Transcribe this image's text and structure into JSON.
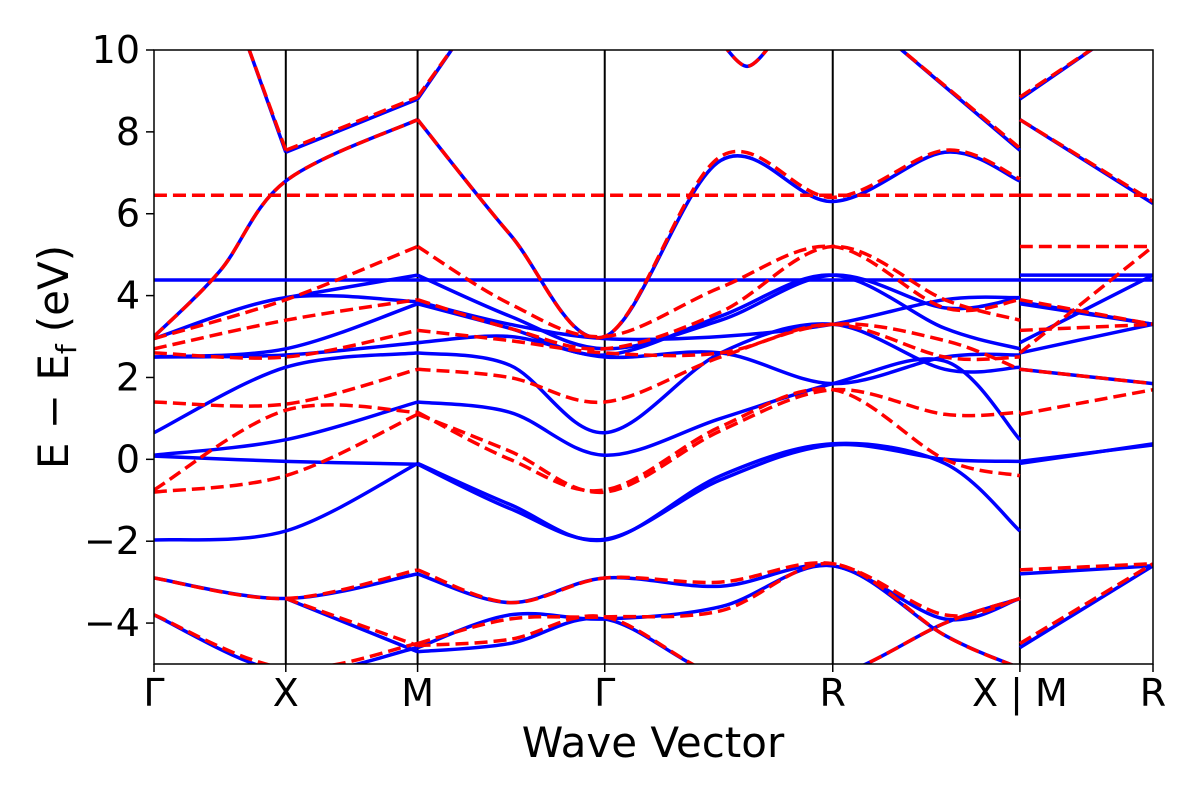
{
  "chart_data": {
    "type": "line",
    "xlabel": "Wave Vector",
    "ylabel": "E − E",
    "ylabel_sub": "f",
    "ylabel_unit": "(eV)",
    "ylim": [
      -5,
      10
    ],
    "y_ticks": [
      -4,
      -2,
      0,
      2,
      4,
      6,
      8,
      10
    ],
    "y_tick_labels": [
      "−4",
      "−2",
      "0",
      "2",
      "4",
      "6",
      "8",
      "10"
    ],
    "x_ticks": [
      0,
      1,
      2,
      3.42,
      5.15,
      6.57,
      7.58
    ],
    "x_tick_labels": [
      "Γ",
      "X",
      "M",
      "Γ",
      "R",
      "X | M",
      "R"
    ],
    "xlim": [
      0,
      7.58
    ],
    "grid": false,
    "series": [
      {
        "style": "solid",
        "color": "#0000ff",
        "bands": [
          {
            "x": [
              0,
              7.58
            ],
            "y": [
              4.38,
              4.38
            ]
          },
          {
            "x": [
              0,
              1,
              2
            ],
            "y": [
              -1.97,
              -1.75,
              -0.1
            ]
          },
          {
            "x": [
              2,
              2.7,
              3.42,
              4.3,
              5.15,
              6.0,
              6.57
            ],
            "y": [
              -0.1,
              -1.1,
              -1.97,
              -0.4,
              0.38,
              -0.1,
              -1.75
            ]
          },
          {
            "x": [
              6.57,
              7.58
            ],
            "y": [
              -0.1,
              0.38
            ]
          },
          {
            "x": [
              0,
              1,
              2
            ],
            "y": [
              0.08,
              -0.05,
              -0.12
            ]
          },
          {
            "x": [
              2,
              2.7,
              3.42,
              4.3,
              5.15,
              6.0,
              6.57
            ],
            "y": [
              -0.12,
              -1.2,
              -1.95,
              -0.5,
              0.35,
              0.0,
              -0.05
            ]
          },
          {
            "x": [
              6.57,
              7.58
            ],
            "y": [
              -0.05,
              0.35
            ]
          },
          {
            "x": [
              0,
              1,
              2
            ],
            "y": [
              0.1,
              0.48,
              1.4
            ]
          },
          {
            "x": [
              2,
              2.7,
              3.42,
              4.3,
              5.15,
              6.0,
              6.57
            ],
            "y": [
              1.4,
              1.15,
              0.1,
              1.0,
              1.85,
              2.4,
              0.48
            ]
          },
          {
            "x": [
              6.57,
              7.58
            ],
            "y": [
              2.2,
              1.85
            ]
          },
          {
            "x": [
              0,
              1,
              2
            ],
            "y": [
              0.65,
              2.25,
              2.6
            ]
          },
          {
            "x": [
              2,
              2.7,
              3.42,
              4.3,
              5.15,
              6.0,
              6.57
            ],
            "y": [
              2.6,
              2.3,
              0.65,
              2.6,
              3.3,
              2.2,
              2.25
            ]
          },
          {
            "x": [
              6.57,
              7.58
            ],
            "y": [
              2.6,
              3.3
            ]
          },
          {
            "x": [
              0,
              1,
              2
            ],
            "y": [
              2.5,
              2.55,
              2.85
            ]
          },
          {
            "x": [
              2,
              2.7,
              3.42,
              4.3,
              5.15,
              6.0,
              6.57
            ],
            "y": [
              2.85,
              3.0,
              2.5,
              2.6,
              1.85,
              2.5,
              2.55
            ]
          },
          {
            "x": [
              6.57,
              7.58
            ],
            "y": [
              2.85,
              4.5
            ]
          },
          {
            "x": [
              0,
              1,
              2
            ],
            "y": [
              2.5,
              2.7,
              3.8
            ]
          },
          {
            "x": [
              2,
              2.7,
              3.42,
              4.3,
              5.15,
              6.0,
              6.57
            ],
            "y": [
              3.8,
              3.2,
              2.55,
              3.5,
              4.5,
              3.2,
              2.7
            ]
          },
          {
            "x": [
              6.57,
              7.58
            ],
            "y": [
              3.8,
              3.3
            ]
          },
          {
            "x": [
              0,
              1,
              2
            ],
            "y": [
              2.95,
              3.95,
              3.85
            ]
          },
          {
            "x": [
              2,
              2.7,
              3.42,
              4.3,
              5.15,
              6.0,
              6.57
            ],
            "y": [
              3.85,
              3.3,
              2.95,
              3.0,
              3.3,
              3.9,
              3.95
            ]
          },
          {
            "x": [
              6.57,
              7.58
            ],
            "y": [
              3.85,
              3.3
            ]
          },
          {
            "x": [
              1,
              2
            ],
            "y": [
              3.95,
              4.5
            ]
          },
          {
            "x": [
              2,
              2.7,
              3.42,
              4.3,
              5.15,
              6.0,
              6.57
            ],
            "y": [
              4.5,
              3.5,
              2.7,
              3.4,
              4.5,
              3.7,
              3.95
            ]
          },
          {
            "x": [
              6.57,
              7.58
            ],
            "y": [
              4.5,
              4.5
            ]
          },
          {
            "x": [
              0,
              0.5,
              1,
              2
            ],
            "y": [
              3.0,
              4.6,
              6.8,
              8.3
            ]
          },
          {
            "x": [
              2,
              2.7,
              3.42,
              4.3,
              5.15,
              6.0,
              6.57
            ],
            "y": [
              8.3,
              5.5,
              3.0,
              7.3,
              6.3,
              7.5,
              6.8
            ]
          },
          {
            "x": [
              6.57,
              7.58
            ],
            "y": [
              8.3,
              6.25
            ]
          },
          {
            "x": [
              1,
              2
            ],
            "y": [
              7.5,
              8.8
            ]
          },
          {
            "x": [
              2,
              2.3
            ],
            "y": [
              8.8,
              10.2
            ]
          },
          {
            "x": [
              1,
              0.7
            ],
            "y": [
              7.5,
              10.2
            ]
          },
          {
            "x": [
              4.3,
              4.5,
              4.7
            ],
            "y": [
              10.2,
              9.6,
              10.2
            ]
          },
          {
            "x": [
              5.6,
              6.57
            ],
            "y": [
              10.2,
              7.55
            ]
          },
          {
            "x": [
              6.57,
              7.2
            ],
            "y": [
              8.8,
              10.2
            ]
          },
          {
            "x": [
              0,
              1,
              2
            ],
            "y": [
              -2.9,
              -3.4,
              -2.8
            ]
          },
          {
            "x": [
              2,
              2.7,
              3.42,
              4.3,
              5.15,
              6.0,
              6.57
            ],
            "y": [
              -2.8,
              -3.5,
              -2.9,
              -3.1,
              -2.6,
              -3.9,
              -3.4
            ]
          },
          {
            "x": [
              6.57,
              7.58
            ],
            "y": [
              -2.8,
              -2.6
            ]
          },
          {
            "x": [
              0,
              1,
              2
            ],
            "y": [
              -3.8,
              -5.2,
              -4.6
            ]
          },
          {
            "x": [
              2,
              2.7,
              3.42,
              4.3,
              5.15,
              6.0,
              6.57
            ],
            "y": [
              -4.6,
              -3.8,
              -3.9,
              -3.6,
              -2.6,
              -4.3,
              -5.1
            ]
          },
          {
            "x": [
              6.57,
              7.58
            ],
            "y": [
              -4.6,
              -2.6
            ]
          },
          {
            "x": [
              1,
              2
            ],
            "y": [
              -3.4,
              -4.7
            ]
          },
          {
            "x": [
              2,
              2.7,
              3.42,
              4.3,
              5.15,
              6.0,
              6.57
            ],
            "y": [
              -4.7,
              -4.5,
              -3.9,
              -5.3,
              -5.3,
              -4.0,
              -3.4
            ]
          }
        ]
      },
      {
        "style": "dashed",
        "color": "#ff0000",
        "bands": [
          {
            "x": [
              0,
              6.57
            ],
            "y": [
              6.45,
              6.45
            ]
          },
          {
            "x": [
              6.57,
              7.58
            ],
            "y": [
              6.45,
              6.45
            ]
          },
          {
            "x": [
              6.57,
              7.58
            ],
            "y": [
              5.2,
              5.2
            ]
          },
          {
            "x": [
              0,
              1,
              2
            ],
            "y": [
              -0.8,
              -0.4,
              1.1
            ]
          },
          {
            "x": [
              2,
              2.7,
              3.42,
              4.3,
              5.15,
              6.0,
              6.57
            ],
            "y": [
              1.1,
              0.2,
              -0.8,
              0.7,
              1.7,
              1.1,
              1.15
            ]
          },
          {
            "x": [
              6.57,
              7.58
            ],
            "y": [
              1.1,
              1.7
            ]
          },
          {
            "x": [
              0,
              1,
              2
            ],
            "y": [
              -0.75,
              1.2,
              1.15
            ]
          },
          {
            "x": [
              2,
              2.7,
              3.42,
              4.3,
              5.15,
              6.0,
              6.57
            ],
            "y": [
              1.15,
              0.0,
              -0.75,
              0.8,
              1.7,
              0.0,
              -0.4
            ]
          },
          {
            "x": [
              0,
              1,
              2
            ],
            "y": [
              1.4,
              1.35,
              2.2
            ]
          },
          {
            "x": [
              2,
              2.7,
              3.42,
              4.3,
              5.15,
              6.0,
              6.57
            ],
            "y": [
              2.2,
              2.0,
              1.4,
              2.5,
              3.3,
              2.9,
              2.2
            ]
          },
          {
            "x": [
              6.57,
              7.58
            ],
            "y": [
              2.2,
              1.85
            ]
          },
          {
            "x": [
              0,
              1,
              2
            ],
            "y": [
              2.6,
              2.5,
              3.15
            ]
          },
          {
            "x": [
              2,
              2.7,
              3.42,
              4.3,
              5.15,
              6.0,
              6.57
            ],
            "y": [
              3.15,
              2.9,
              2.6,
              2.6,
              3.3,
              2.5,
              2.5
            ]
          },
          {
            "x": [
              6.57,
              7.58
            ],
            "y": [
              3.15,
              3.3
            ]
          },
          {
            "x": [
              0,
              1,
              2
            ],
            "y": [
              2.7,
              3.4,
              3.9
            ]
          },
          {
            "x": [
              2,
              2.7,
              3.42,
              4.3,
              5.15,
              6.0,
              6.57
            ],
            "y": [
              3.9,
              3.2,
              2.7,
              3.6,
              5.2,
              3.9,
              3.4
            ]
          },
          {
            "x": [
              6.57,
              7.58
            ],
            "y": [
              2.6,
              5.2
            ]
          },
          {
            "x": [
              0,
              1,
              2
            ],
            "y": [
              2.95,
              3.9,
              5.2
            ]
          },
          {
            "x": [
              2,
              2.7,
              3.42,
              4.3,
              5.15,
              6.0,
              6.57
            ],
            "y": [
              5.2,
              3.8,
              3.0,
              4.2,
              5.2,
              3.7,
              3.9
            ]
          },
          {
            "x": [
              6.57,
              7.58
            ],
            "y": [
              3.9,
              3.3
            ]
          },
          {
            "x": [
              0,
              0.5,
              1,
              2
            ],
            "y": [
              3.0,
              4.6,
              6.8,
              8.3
            ]
          },
          {
            "x": [
              2,
              2.7,
              3.42,
              4.3,
              5.15,
              6.0,
              6.57
            ],
            "y": [
              8.3,
              5.5,
              3.0,
              7.4,
              6.4,
              7.55,
              6.85
            ]
          },
          {
            "x": [
              6.57,
              7.58
            ],
            "y": [
              8.3,
              6.3
            ]
          },
          {
            "x": [
              1,
              2
            ],
            "y": [
              7.55,
              8.85
            ]
          },
          {
            "x": [
              2,
              2.3
            ],
            "y": [
              8.85,
              10.2
            ]
          },
          {
            "x": [
              1,
              0.7
            ],
            "y": [
              7.55,
              10.2
            ]
          },
          {
            "x": [
              4.3,
              4.5,
              4.7
            ],
            "y": [
              10.2,
              9.6,
              10.2
            ]
          },
          {
            "x": [
              5.6,
              6.57
            ],
            "y": [
              10.2,
              7.6
            ]
          },
          {
            "x": [
              6.57,
              7.2
            ],
            "y": [
              8.85,
              10.2
            ]
          },
          {
            "x": [
              0,
              1,
              2
            ],
            "y": [
              -2.9,
              -3.4,
              -2.7
            ]
          },
          {
            "x": [
              2,
              2.7,
              3.42,
              4.3,
              5.15,
              6.0,
              6.57
            ],
            "y": [
              -2.7,
              -3.5,
              -2.9,
              -3.0,
              -2.55,
              -3.8,
              -3.4
            ]
          },
          {
            "x": [
              6.57,
              7.58
            ],
            "y": [
              -2.7,
              -2.55
            ]
          },
          {
            "x": [
              0,
              1,
              2
            ],
            "y": [
              -3.8,
              -5.1,
              -4.5
            ]
          },
          {
            "x": [
              2,
              2.7,
              3.42,
              4.3,
              5.15,
              6.0,
              6.57
            ],
            "y": [
              -4.5,
              -3.9,
              -3.85,
              -3.7,
              -2.55,
              -4.3,
              -5.1
            ]
          },
          {
            "x": [
              6.57,
              7.58
            ],
            "y": [
              -4.5,
              -2.55
            ]
          },
          {
            "x": [
              1,
              2
            ],
            "y": [
              -3.4,
              -4.55
            ]
          },
          {
            "x": [
              2,
              2.7,
              3.42,
              4.3,
              5.15,
              6.0,
              6.57
            ],
            "y": [
              -4.55,
              -4.4,
              -3.85,
              -5.3,
              -5.3,
              -4.0,
              -3.4
            ]
          }
        ]
      }
    ]
  }
}
